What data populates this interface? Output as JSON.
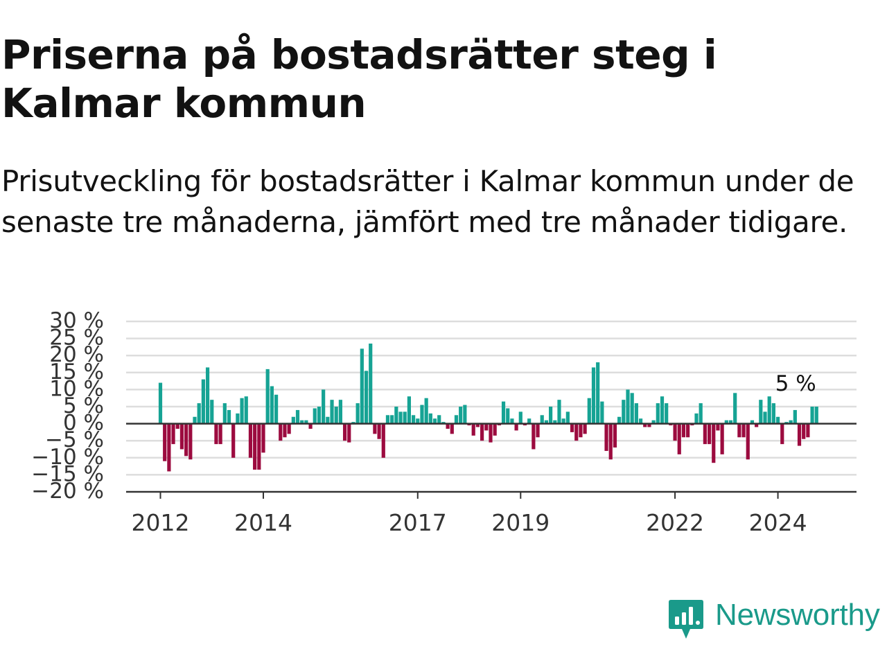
{
  "title": "Priserna på bostadsrätter steg i Kalmar kommun",
  "subtitle": "Prisutveckling för bostadsrätter i Kalmar kommun under de senaste tre månaderna, jämfört med tre månader tidigare.",
  "brand": {
    "name": "Newsworthy",
    "color": "#1a9a8a",
    "icon": "bar-chart-speech-bubble-icon"
  },
  "colors": {
    "positive": "#16a394",
    "negative": "#9c0b3f",
    "grid": "#dddddd",
    "axis": "#333333",
    "text": "#121212"
  },
  "chart_data": {
    "type": "bar",
    "title": "",
    "xlabel": "",
    "ylabel": "",
    "ylim": [
      -20,
      30
    ],
    "y_ticks": [
      30,
      25,
      20,
      15,
      10,
      5,
      0,
      -5,
      -10,
      -15,
      -20
    ],
    "y_tick_labels": [
      "30 %",
      "25 %",
      "20 %",
      "15 %",
      "10 %",
      "5 %",
      "0 %",
      "−5 %",
      "−10 %",
      "−15 %",
      "−20 %"
    ],
    "x_tick_labels": [
      {
        "label": "2012",
        "date": "2012-01"
      },
      {
        "label": "2014",
        "date": "2014-01"
      },
      {
        "label": "2017",
        "date": "2017-01"
      },
      {
        "label": "2019",
        "date": "2019-01"
      },
      {
        "label": "2022",
        "date": "2022-01"
      },
      {
        "label": "2024",
        "date": "2024-01"
      }
    ],
    "grid": true,
    "legend": "none",
    "last_value_label": "5 %",
    "x": [
      "2012-01",
      "2012-02",
      "2012-03",
      "2012-04",
      "2012-05",
      "2012-06",
      "2012-07",
      "2012-08",
      "2012-09",
      "2012-10",
      "2012-11",
      "2012-12",
      "2013-01",
      "2013-02",
      "2013-03",
      "2013-04",
      "2013-05",
      "2013-06",
      "2013-07",
      "2013-08",
      "2013-09",
      "2013-10",
      "2013-11",
      "2013-12",
      "2014-01",
      "2014-02",
      "2014-03",
      "2014-04",
      "2014-05",
      "2014-06",
      "2014-07",
      "2014-08",
      "2014-09",
      "2014-10",
      "2014-11",
      "2014-12",
      "2015-01",
      "2015-02",
      "2015-03",
      "2015-04",
      "2015-05",
      "2015-06",
      "2015-07",
      "2015-08",
      "2015-09",
      "2015-10",
      "2015-11",
      "2015-12",
      "2016-01",
      "2016-02",
      "2016-03",
      "2016-04",
      "2016-05",
      "2016-06",
      "2016-07",
      "2016-08",
      "2016-09",
      "2016-10",
      "2016-11",
      "2016-12",
      "2017-01",
      "2017-02",
      "2017-03",
      "2017-04",
      "2017-05",
      "2017-06",
      "2017-07",
      "2017-08",
      "2017-09",
      "2017-10",
      "2017-11",
      "2017-12",
      "2018-01",
      "2018-02",
      "2018-03",
      "2018-04",
      "2018-05",
      "2018-06",
      "2018-07",
      "2018-08",
      "2018-09",
      "2018-10",
      "2018-11",
      "2018-12",
      "2019-01",
      "2019-02",
      "2019-03",
      "2019-04",
      "2019-05",
      "2019-06",
      "2019-07",
      "2019-08",
      "2019-09",
      "2019-10",
      "2019-11",
      "2019-12",
      "2020-01",
      "2020-02",
      "2020-03",
      "2020-04",
      "2020-05",
      "2020-06",
      "2020-07",
      "2020-08",
      "2020-09",
      "2020-10",
      "2020-11",
      "2020-12",
      "2021-01",
      "2021-02",
      "2021-03",
      "2021-04",
      "2021-05",
      "2021-06",
      "2021-07",
      "2021-08",
      "2021-09",
      "2021-10",
      "2021-11",
      "2021-12",
      "2022-01",
      "2022-02",
      "2022-03",
      "2022-04",
      "2022-05",
      "2022-06",
      "2022-07",
      "2022-08",
      "2022-09",
      "2022-10",
      "2022-11",
      "2022-12",
      "2023-01",
      "2023-02",
      "2023-03",
      "2023-04",
      "2023-05",
      "2023-06",
      "2023-07",
      "2023-08",
      "2023-09",
      "2023-10",
      "2023-11",
      "2023-12",
      "2024-01",
      "2024-02",
      "2024-03",
      "2024-04",
      "2024-05",
      "2024-06",
      "2024-07",
      "2024-08",
      "2024-09",
      "2024-10"
    ],
    "values": [
      12,
      -11,
      -14,
      -6,
      -1.5,
      -7.5,
      -9.5,
      -10.5,
      2,
      6,
      13,
      16.5,
      7,
      -6,
      -6,
      6,
      4,
      -10,
      3,
      7.5,
      8,
      -10,
      -13.5,
      -13.5,
      -8.5,
      16,
      11,
      8.5,
      -5,
      -4,
      -3,
      2,
      4,
      1,
      1,
      -1.5,
      4.5,
      5,
      10,
      2,
      7,
      5,
      7,
      -5,
      -5.5,
      0.5,
      6,
      22,
      15.5,
      23.5,
      -3,
      -4.5,
      -10,
      2.5,
      2.5,
      5,
      3.5,
      3.5,
      8,
      2.5,
      1.5,
      5.5,
      7.5,
      3,
      1.5,
      2.5,
      0.5,
      -1.5,
      -3,
      2.5,
      5,
      5.5,
      -0.5,
      -3.5,
      -1,
      -5,
      -2,
      -5.5,
      -3.5,
      -0.5,
      6.5,
      4.5,
      1.5,
      -2,
      3.5,
      -0.5,
      1.5,
      -7.5,
      -4,
      2.5,
      1,
      5,
      1,
      7,
      1.5,
      3.5,
      -2.5,
      -5,
      -4,
      -3,
      7.5,
      16.5,
      18,
      6.5,
      -8,
      -10.5,
      -7,
      2,
      7,
      10,
      9,
      6,
      1.5,
      -1,
      -1,
      1,
      6,
      8,
      6,
      -0.5,
      -5,
      -9,
      -4,
      -4,
      -0.5,
      3,
      6,
      -6,
      -6,
      -11.5,
      -2,
      -9,
      1,
      1,
      9,
      -4,
      -4,
      -10.5,
      1,
      -1,
      7,
      3.5,
      8,
      6,
      2,
      -6,
      0.5,
      1,
      4,
      -6.5,
      -4.5,
      -4,
      5,
      5
    ]
  }
}
